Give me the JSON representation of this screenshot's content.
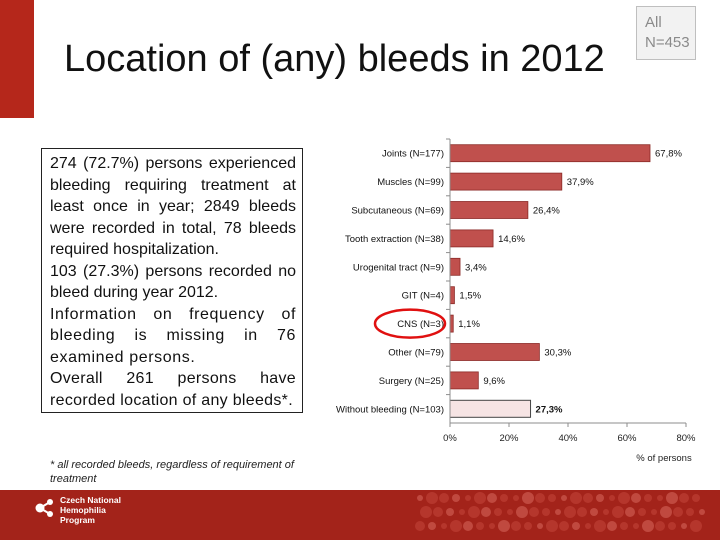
{
  "header": {
    "title": "Location of (any) bleeds in 2012",
    "badge_line1": "All",
    "badge_line2": "N=453"
  },
  "textbox": {
    "p1": "274 (72.7%) persons experienced bleeding requiring treatment at least once in year; 2849 bleeds were recorded in total, 78 bleeds required hospitalization.",
    "p2": "103 (27.3%) persons recorded no bleed during year 2012.",
    "p3": "Information on frequency of bleeding is missing in 76 examined persons.",
    "p4": "Overall 261 persons have recorded location of any bleeds*."
  },
  "footnote": "* all recorded bleeds, regardless of requirement of treatment",
  "footer": {
    "logo_line1": "Czech National",
    "logo_line2": "Hemophilia",
    "logo_line3": "Program"
  },
  "colors": {
    "accent": "#b5271b",
    "bar_fill": "#c0504d",
    "bar_light": "#f6e4e4",
    "highlight_ring": "#e01010"
  },
  "chart_data": {
    "type": "bar",
    "orientation": "horizontal",
    "categories": [
      "Joints (N=177)",
      "Muscles (N=99)",
      "Subcutaneous (N=69)",
      "Tooth extraction (N=38)",
      "Urogenital tract (N=9)",
      "GIT (N=4)",
      "CNS (N=3)",
      "Other (N=79)",
      "Surgery (N=25)",
      "Without bleeding (N=103)"
    ],
    "values": [
      67.8,
      37.9,
      26.4,
      14.6,
      3.4,
      1.5,
      1.1,
      30.3,
      9.6,
      27.3
    ],
    "value_labels": [
      "67,8%",
      "37,9%",
      "26,4%",
      "14,6%",
      "3,4%",
      "1,5%",
      "1,1%",
      "30,3%",
      "9,6%",
      "27,3%"
    ],
    "xlabel": "% of persons",
    "xlim": [
      0,
      80
    ],
    "xticks": [
      0,
      20,
      40,
      60,
      80
    ],
    "xtick_labels": [
      "0%",
      "20%",
      "40%",
      "60%",
      "80%"
    ],
    "highlighted_category": "CNS (N=3)",
    "light_category": "Without bleeding (N=103)"
  }
}
